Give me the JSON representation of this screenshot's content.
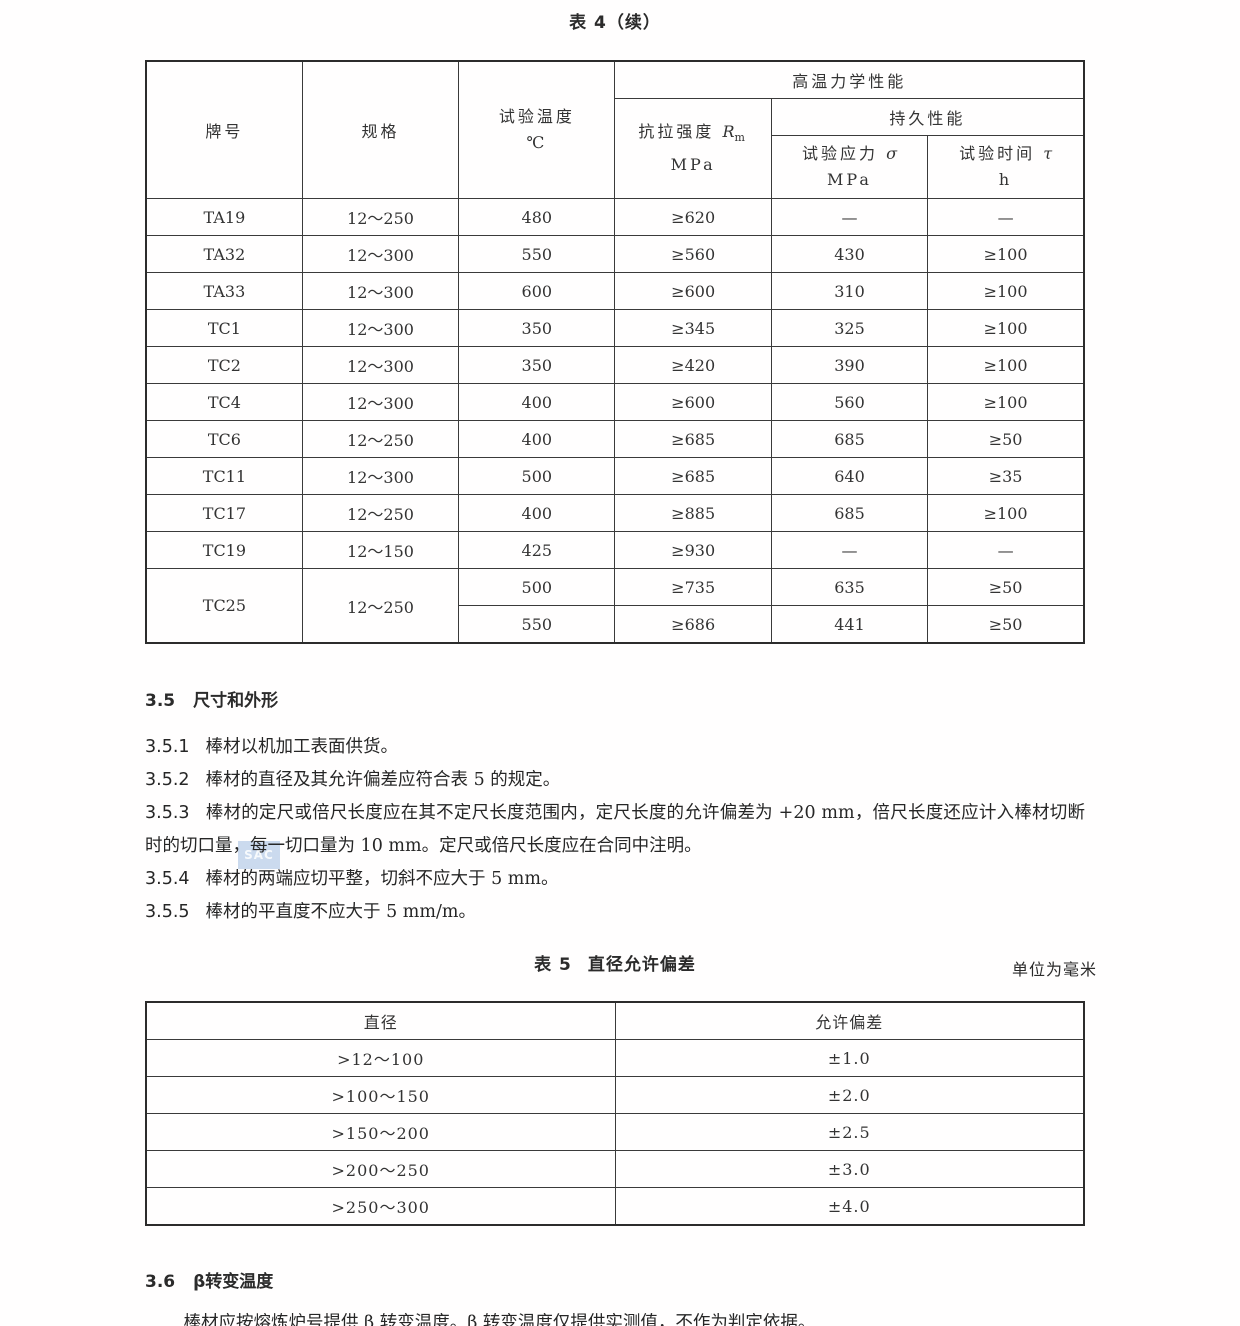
{
  "table4": {
    "title": "表 4（续）",
    "header": {
      "grade": "牌号",
      "spec": "规格",
      "temp_line1": "试验温度",
      "temp_line2": "℃",
      "high_temp": "高温力学性能",
      "tensile_label": "抗拉强度 ",
      "tensile_symbol": "R",
      "tensile_sub": "m",
      "tensile_unit": "MPa",
      "endurance": "持久性能",
      "stress_label": "试验应力 ",
      "stress_symbol": "σ",
      "stress_unit": "MPa",
      "time_label": "试验时间 ",
      "time_symbol": "τ",
      "time_unit": "h"
    },
    "rows": [
      {
        "grade": "TA19",
        "spec": "12～250",
        "temp": "480",
        "rm": "≥620",
        "stress": "—",
        "time": "—"
      },
      {
        "grade": "TA32",
        "spec": "12～300",
        "temp": "550",
        "rm": "≥560",
        "stress": "430",
        "time": "≥100"
      },
      {
        "grade": "TA33",
        "spec": "12～300",
        "temp": "600",
        "rm": "≥600",
        "stress": "310",
        "time": "≥100"
      },
      {
        "grade": "TC1",
        "spec": "12～300",
        "temp": "350",
        "rm": "≥345",
        "stress": "325",
        "time": "≥100"
      },
      {
        "grade": "TC2",
        "spec": "12～300",
        "temp": "350",
        "rm": "≥420",
        "stress": "390",
        "time": "≥100"
      },
      {
        "grade": "TC4",
        "spec": "12～300",
        "temp": "400",
        "rm": "≥600",
        "stress": "560",
        "time": "≥100"
      },
      {
        "grade": "TC6",
        "spec": "12～250",
        "temp": "400",
        "rm": "≥685",
        "stress": "685",
        "time": "≥50"
      },
      {
        "grade": "TC11",
        "spec": "12～300",
        "temp": "500",
        "rm": "≥685",
        "stress": "640",
        "time": "≥35"
      },
      {
        "grade": "TC17",
        "spec": "12～250",
        "temp": "400",
        "rm": "≥885",
        "stress": "685",
        "time": "≥100"
      },
      {
        "grade": "TC19",
        "spec": "12～150",
        "temp": "425",
        "rm": "≥930",
        "stress": "—",
        "time": "—"
      },
      {
        "grade": "TC25",
        "spec": "12～250",
        "temp": "500",
        "rm": "≥735",
        "stress": "635",
        "time": "≥50"
      },
      {
        "temp": "550",
        "rm": "≥686",
        "stress": "441",
        "time": "≥50"
      }
    ]
  },
  "section35": {
    "number": "3.5",
    "title": "尺寸和外形",
    "items": [
      {
        "num": "3.5.1",
        "text": "棒材以机加工表面供货。"
      },
      {
        "num": "3.5.2",
        "text": "棒材的直径及其允许偏差应符合表 5 的规定。"
      },
      {
        "num": "3.5.3",
        "text": "棒材的定尺或倍尺长度应在其不定尺长度范围内，定尺长度的允许偏差为 +20 mm，倍尺长度还应计入棒材切断时的切口量，每一切口量为 10 mm。定尺或倍尺长度应在合同中注明。"
      },
      {
        "num": "3.5.4",
        "text": "棒材的两端应切平整，切斜不应大于 5 mm。"
      },
      {
        "num": "3.5.5",
        "text": "棒材的平直度不应大于 5 mm/m。"
      }
    ]
  },
  "table5": {
    "caption_label": "表 5",
    "caption_title": "直径允许偏差",
    "unit_note": "单位为毫米",
    "headers": {
      "diameter": "直径",
      "deviation": "允许偏差"
    },
    "rows": [
      {
        "diameter": ">12～100",
        "deviation": "±1.0"
      },
      {
        "diameter": ">100～150",
        "deviation": "±2.0"
      },
      {
        "diameter": ">150～200",
        "deviation": "±2.5"
      },
      {
        "diameter": ">200～250",
        "deviation": "±3.0"
      },
      {
        "diameter": ">250～300",
        "deviation": "±4.0"
      }
    ]
  },
  "section36": {
    "number": "3.6",
    "title": "β转变温度",
    "paragraph": "棒材应按熔炼炉号提供 β 转变温度。β 转变温度仅提供实测值，不作为判定依据。"
  },
  "watermark": {
    "text": "SAC",
    "color": "#7da5d7"
  }
}
